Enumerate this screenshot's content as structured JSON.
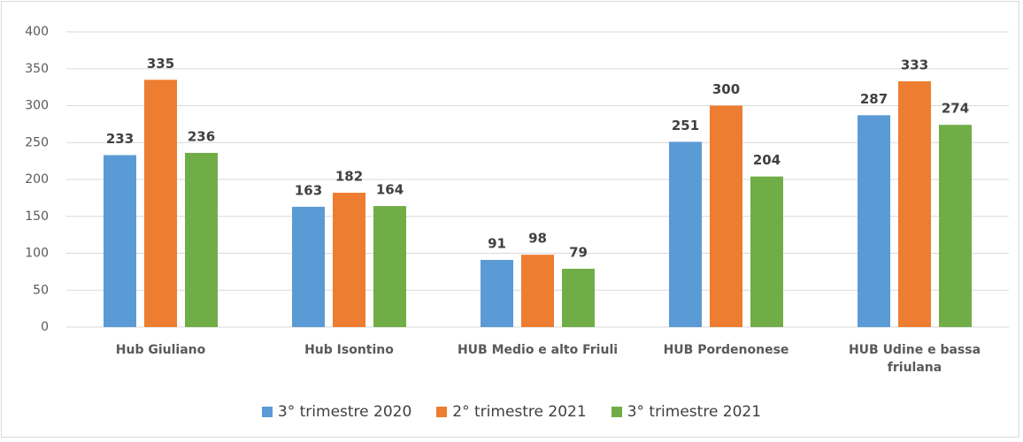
{
  "chart_data": {
    "type": "bar",
    "categories": [
      "Hub Giuliano",
      "Hub Isontino",
      "HUB Medio e alto Friuli",
      "HUB Pordenonese",
      "HUB Udine e bassa friulana"
    ],
    "series": [
      {
        "name": "3° trimestre 2020",
        "color": "#5b9bd5",
        "values": [
          233,
          163,
          91,
          251,
          287
        ]
      },
      {
        "name": "2° trimestre 2021",
        "color": "#ed7d31",
        "values": [
          335,
          182,
          98,
          300,
          333
        ]
      },
      {
        "name": "3° trimestre 2021",
        "color": "#70ad47",
        "values": [
          236,
          164,
          79,
          204,
          274
        ]
      }
    ],
    "ylim": [
      0,
      400
    ],
    "yticks": [
      0,
      50,
      100,
      150,
      200,
      250,
      300,
      350,
      400
    ],
    "grid": true,
    "legend": "bottom"
  }
}
